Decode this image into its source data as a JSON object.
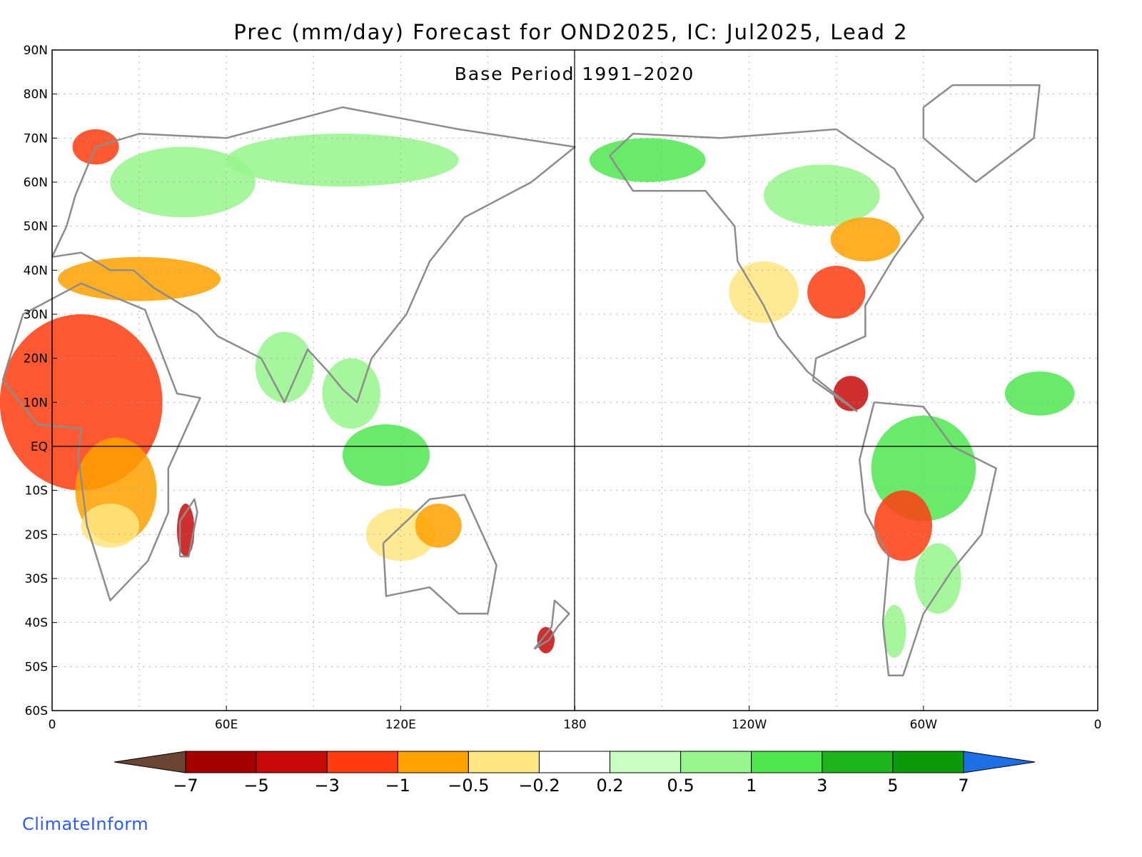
{
  "title": "Prec (mm/day) Forecast for OND2025, IC: Jul2025, Lead 2",
  "subtitle": "Base Period 1991–2020",
  "brand": "ClimateInform",
  "colors": {
    "land_outline": "#8c8c8c",
    "grid": "#9a9a9a",
    "dry_extreme": "#6b4433",
    "wet_extreme": "#1e6ee6"
  },
  "map": {
    "projection": "equirectangular",
    "lon_range": [
      0,
      360
    ],
    "lat_range": [
      -60,
      90
    ],
    "lat_ticks": [
      "90N",
      "80N",
      "70N",
      "60N",
      "50N",
      "40N",
      "30N",
      "20N",
      "10N",
      "EQ",
      "10S",
      "20S",
      "30S",
      "40S",
      "50S",
      "60S"
    ],
    "lon_ticks": [
      "0",
      "60E",
      "120E",
      "180",
      "120W",
      "60W",
      "0"
    ]
  },
  "colorbar": {
    "labels": [
      "−7",
      "−5",
      "−3",
      "−1",
      "−0.5",
      "−0.2",
      "0.2",
      "0.5",
      "1",
      "3",
      "5",
      "7"
    ],
    "colors": [
      "#a50000",
      "#c80a0a",
      "#ff3c10",
      "#ffa100",
      "#ffe680",
      "#ffffff",
      "#c8ffc0",
      "#96f58c",
      "#50e650",
      "#1eb41e",
      "#0a9a0a"
    ]
  }
}
